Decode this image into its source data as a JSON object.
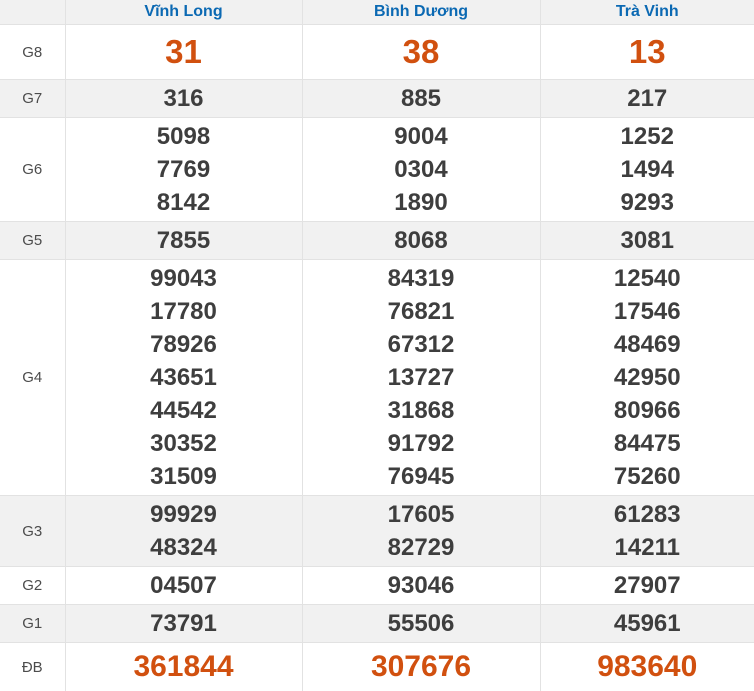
{
  "colors": {
    "header_text": "#0b69b3",
    "highlight_orange": "#d1500f",
    "number_dark": "#3e3e3e",
    "label_gray": "#4c4c4c",
    "row_alt_bg": "#f1f1f1",
    "border": "#e2e2e2"
  },
  "table": {
    "corner_label": "",
    "columns": [
      "Vĩnh Long",
      "Bình Dương",
      "Trà Vinh"
    ],
    "rows": [
      {
        "label": "G8",
        "type": "highlight",
        "cells": [
          [
            "31"
          ],
          [
            "38"
          ],
          [
            "13"
          ]
        ]
      },
      {
        "label": "G7",
        "type": "normal",
        "cells": [
          [
            "316"
          ],
          [
            "885"
          ],
          [
            "217"
          ]
        ]
      },
      {
        "label": "G6",
        "type": "normal",
        "cells": [
          [
            "5098",
            "7769",
            "8142"
          ],
          [
            "9004",
            "0304",
            "1890"
          ],
          [
            "1252",
            "1494",
            "9293"
          ]
        ]
      },
      {
        "label": "G5",
        "type": "normal",
        "cells": [
          [
            "7855"
          ],
          [
            "8068"
          ],
          [
            "3081"
          ]
        ]
      },
      {
        "label": "G4",
        "type": "normal",
        "cells": [
          [
            "99043",
            "17780",
            "78926",
            "43651",
            "44542",
            "30352",
            "31509"
          ],
          [
            "84319",
            "76821",
            "67312",
            "13727",
            "31868",
            "91792",
            "76945"
          ],
          [
            "12540",
            "17546",
            "48469",
            "42950",
            "80966",
            "84475",
            "75260"
          ]
        ]
      },
      {
        "label": "G3",
        "type": "normal",
        "cells": [
          [
            "99929",
            "48324"
          ],
          [
            "17605",
            "82729"
          ],
          [
            "61283",
            "14211"
          ]
        ]
      },
      {
        "label": "G2",
        "type": "normal",
        "cells": [
          [
            "04507"
          ],
          [
            "93046"
          ],
          [
            "27907"
          ]
        ]
      },
      {
        "label": "G1",
        "type": "normal",
        "cells": [
          [
            "73791"
          ],
          [
            "55506"
          ],
          [
            "45961"
          ]
        ]
      },
      {
        "label": "ĐB",
        "type": "jackpot",
        "cells": [
          [
            "361844"
          ],
          [
            "307676"
          ],
          [
            "983640"
          ]
        ]
      }
    ]
  }
}
